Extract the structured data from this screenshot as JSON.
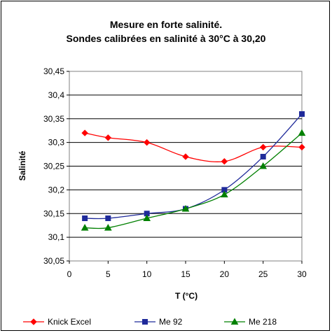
{
  "chart_data": {
    "type": "line",
    "title_line1": "Mesure en forte salinité.",
    "title_line2": "Sondes calibrées en salinité à 30°C à 30,20",
    "xlabel": "T (°C)",
    "ylabel": "Salinité",
    "xlim": [
      0,
      30
    ],
    "ylim": [
      30.05,
      30.45
    ],
    "x_ticks": [
      0,
      5,
      10,
      15,
      20,
      25,
      30
    ],
    "y_ticks": [
      30.05,
      30.1,
      30.15,
      30.2,
      30.25,
      30.3,
      30.35,
      30.4,
      30.45
    ],
    "y_tick_labels": [
      "30,05",
      "30,1",
      "30,15",
      "30,2",
      "30,25",
      "30,3",
      "30,35",
      "30,4",
      "30,45"
    ],
    "grid": "horizontal",
    "legend_position": "bottom",
    "series": [
      {
        "name": "Knick Excel",
        "color": "#ff0000",
        "marker": "diamond",
        "x": [
          2,
          5,
          10,
          15,
          20,
          25,
          30
        ],
        "y": [
          30.32,
          30.31,
          30.3,
          30.27,
          30.26,
          30.29,
          30.29
        ]
      },
      {
        "name": "Me 92",
        "color": "#1f2a9a",
        "marker": "square",
        "x": [
          2,
          5,
          10,
          15,
          20,
          25,
          30
        ],
        "y": [
          30.14,
          30.14,
          30.15,
          30.16,
          30.2,
          30.27,
          30.36
        ]
      },
      {
        "name": "Me 218",
        "color": "#008000",
        "marker": "triangle",
        "x": [
          2,
          5,
          10,
          15,
          20,
          25,
          30
        ],
        "y": [
          30.12,
          30.12,
          30.14,
          30.16,
          30.19,
          30.25,
          30.32
        ]
      }
    ]
  }
}
